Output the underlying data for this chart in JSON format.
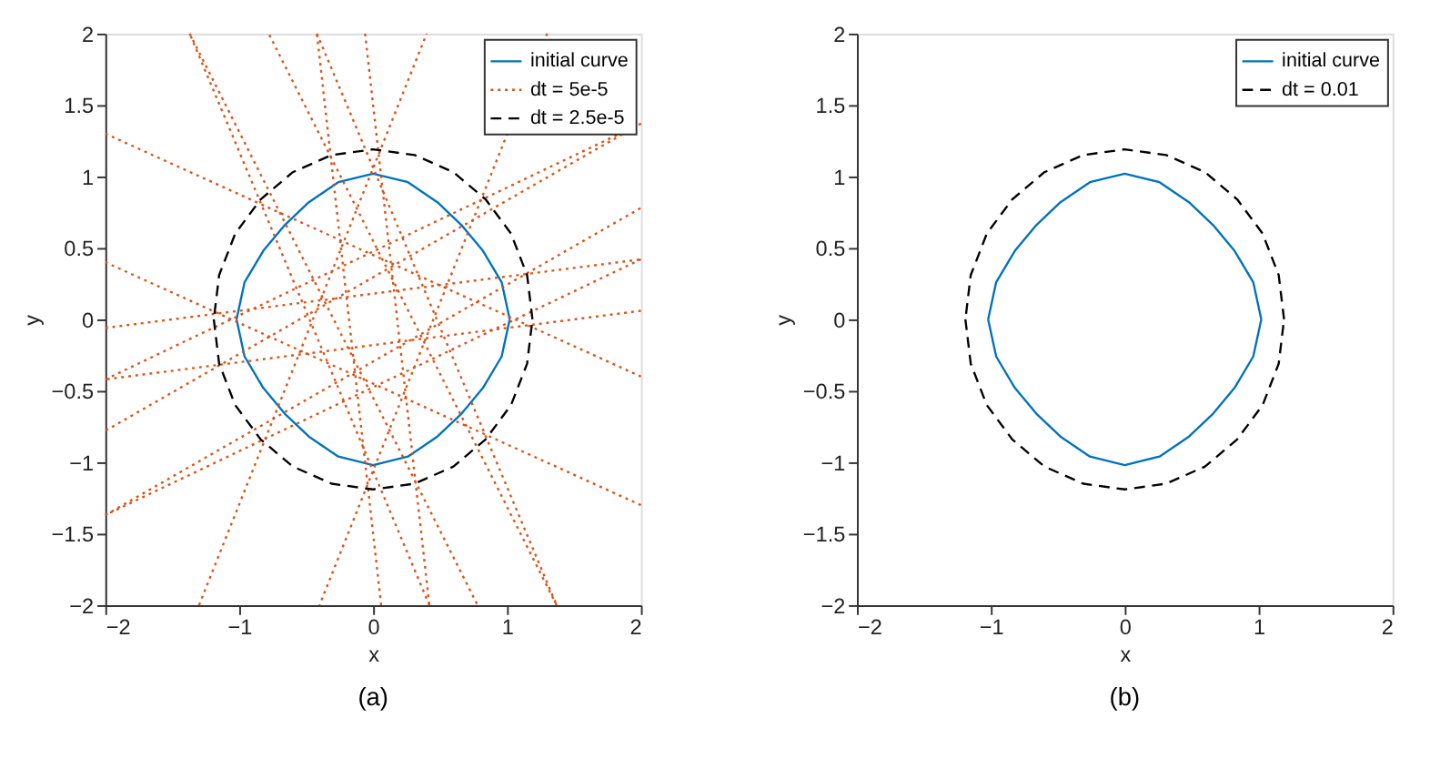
{
  "chart_data": [
    {
      "type": "line",
      "xlabel": "x",
      "ylabel": "y",
      "xlim": [
        -2,
        2
      ],
      "ylim": [
        -2,
        2
      ],
      "xticks": [
        -2,
        -1,
        0,
        1,
        2
      ],
      "yticks": [
        -2,
        -1.5,
        -1,
        -0.5,
        0,
        0.5,
        1,
        1.5,
        2
      ],
      "grid": false,
      "legend": "top right",
      "annotations": [
        "(a)"
      ],
      "series": [
        {
          "name": "initial curve",
          "color": "#0072bd",
          "line_style": "solid",
          "x": [
            1.02,
            0.96,
            0.82,
            0.66,
            0.48,
            0.26,
            0,
            -0.26,
            -0.48,
            -0.66,
            -0.82,
            -0.96,
            -1.02,
            null,
            -1.02,
            -0.96,
            -0.82,
            -0.66,
            -0.48,
            -0.26,
            0,
            0.26,
            0.48,
            0.66,
            0.82,
            0.96,
            1.02
          ],
          "values": [
            0,
            0.26,
            0.48,
            0.66,
            0.82,
            0.96,
            1.02,
            0.96,
            0.82,
            0.66,
            0.48,
            0.26,
            0,
            null,
            0,
            -0.26,
            -0.48,
            -0.66,
            -0.82,
            -0.96,
            -1.02,
            -0.96,
            -0.82,
            -0.66,
            -0.48,
            -0.26,
            0
          ]
        },
        {
          "name": "dt = 5e-5",
          "color": "#d95319",
          "line_style": "dotted",
          "x": [
            -1.37,
            0.78
          ],
          "values": [
            2,
            -2
          ]
        },
        {
          "color": "#d95319",
          "line_style": "dotted",
          "x": [
            -0.42,
            1.37
          ],
          "values": [
            2,
            -2
          ]
        },
        {
          "color": "#d95319",
          "line_style": "dotted",
          "x": [
            -2,
            2
          ],
          "values": [
            1.3,
            -0.4
          ]
        },
        {
          "color": "#d95319",
          "line_style": "dotted",
          "x": [
            -0.06,
            0.42
          ],
          "values": [
            2,
            -2
          ]
        },
        {
          "color": "#d95319",
          "line_style": "dotted",
          "x": [
            -2,
            2
          ],
          "values": [
            -1.37,
            0.78
          ]
        },
        {
          "color": "#d95319",
          "line_style": "dotted",
          "x": [
            -2,
            2
          ],
          "values": [
            -0.42,
            1.37
          ]
        },
        {
          "color": "#d95319",
          "line_style": "dotted",
          "x": [
            -2,
            2
          ],
          "values": [
            -0.06,
            0.42
          ]
        },
        {
          "color": "#d95319",
          "line_style": "dotted",
          "x": [
            -1.3,
            0.4
          ],
          "values": [
            -2,
            2
          ]
        },
        {
          "color": "#d95319",
          "line_style": "dotted",
          "x": [
            1.37,
            -0.78
          ],
          "values": [
            -2,
            2
          ]
        },
        {
          "color": "#d95319",
          "line_style": "dotted",
          "x": [
            0.42,
            -1.37
          ],
          "values": [
            -2,
            2
          ]
        },
        {
          "color": "#d95319",
          "line_style": "dotted",
          "x": [
            2,
            -2
          ],
          "values": [
            -1.3,
            0.4
          ]
        },
        {
          "color": "#d95319",
          "line_style": "dotted",
          "x": [
            0.06,
            -0.42
          ],
          "values": [
            -2,
            2
          ]
        },
        {
          "color": "#d95319",
          "line_style": "dotted",
          "x": [
            2,
            -2
          ],
          "values": [
            1.37,
            -0.78
          ]
        },
        {
          "color": "#d95319",
          "line_style": "dotted",
          "x": [
            2,
            -2
          ],
          "values": [
            0.42,
            -1.37
          ]
        },
        {
          "color": "#d95319",
          "line_style": "dotted",
          "x": [
            2,
            -2
          ],
          "values": [
            0.06,
            -0.42
          ]
        },
        {
          "color": "#d95319",
          "line_style": "dotted",
          "x": [
            1.3,
            -0.4
          ],
          "values": [
            2,
            -2
          ]
        },
        {
          "name": "dt = 2.5e-5",
          "color": "#000000",
          "line_style": "dashed",
          "x": [
            1.19,
            1.15,
            1.03,
            0.84,
            0.6,
            0.31,
            0,
            -0.31,
            -0.6,
            -0.84,
            -1.03,
            -1.15,
            -1.19,
            null,
            -1.19,
            -1.15,
            -1.03,
            -0.84,
            -0.6,
            -0.31,
            0,
            0.31,
            0.6,
            0.84,
            1.03,
            1.15,
            1.19
          ],
          "values": [
            0,
            0.31,
            0.6,
            0.84,
            1.03,
            1.15,
            1.19,
            1.15,
            1.03,
            0.84,
            0.6,
            0.31,
            0,
            null,
            0,
            -0.31,
            -0.6,
            -0.84,
            -1.03,
            -1.15,
            -1.19,
            -1.15,
            -1.03,
            -0.84,
            -0.6,
            -0.31,
            0
          ]
        }
      ]
    },
    {
      "type": "line",
      "xlabel": "x",
      "ylabel": "y",
      "xlim": [
        -2,
        2
      ],
      "ylim": [
        -2,
        2
      ],
      "xticks": [
        -2,
        -1,
        0,
        1,
        2
      ],
      "yticks": [
        -2,
        -1.5,
        -1,
        -0.5,
        0,
        0.5,
        1,
        1.5,
        2
      ],
      "grid": false,
      "legend": "top right",
      "annotations": [
        "(b)"
      ],
      "series": [
        {
          "name": "initial curve",
          "color": "#0072bd",
          "line_style": "solid",
          "x": [
            1.02,
            0.96,
            0.82,
            0.66,
            0.48,
            0.26,
            0,
            -0.26,
            -0.48,
            -0.66,
            -0.82,
            -0.96,
            -1.02,
            null,
            -1.02,
            -0.96,
            -0.82,
            -0.66,
            -0.48,
            -0.26,
            0,
            0.26,
            0.48,
            0.66,
            0.82,
            0.96,
            1.02
          ],
          "values": [
            0,
            0.26,
            0.48,
            0.66,
            0.82,
            0.96,
            1.02,
            0.96,
            0.82,
            0.66,
            0.48,
            0.26,
            0,
            null,
            0,
            -0.26,
            -0.48,
            -0.66,
            -0.82,
            -0.96,
            -1.02,
            -0.96,
            -0.82,
            -0.66,
            -0.48,
            -0.26,
            0
          ]
        },
        {
          "name": "dt = 0.01",
          "color": "#000000",
          "line_style": "dashed",
          "x": [
            1.19,
            1.15,
            1.03,
            0.84,
            0.6,
            0.31,
            0,
            -0.31,
            -0.6,
            -0.84,
            -1.03,
            -1.15,
            -1.19,
            null,
            -1.19,
            -1.15,
            -1.03,
            -0.84,
            -0.6,
            -0.31,
            0,
            0.31,
            0.6,
            0.84,
            1.03,
            1.15,
            1.19
          ],
          "values": [
            0,
            0.31,
            0.6,
            0.84,
            1.03,
            1.15,
            1.19,
            1.15,
            1.03,
            0.84,
            0.6,
            0.31,
            0,
            null,
            0,
            -0.31,
            -0.6,
            -0.84,
            -1.03,
            -1.15,
            -1.19,
            -1.15,
            -1.03,
            -0.84,
            -0.6,
            -0.31,
            0
          ]
        }
      ]
    }
  ]
}
